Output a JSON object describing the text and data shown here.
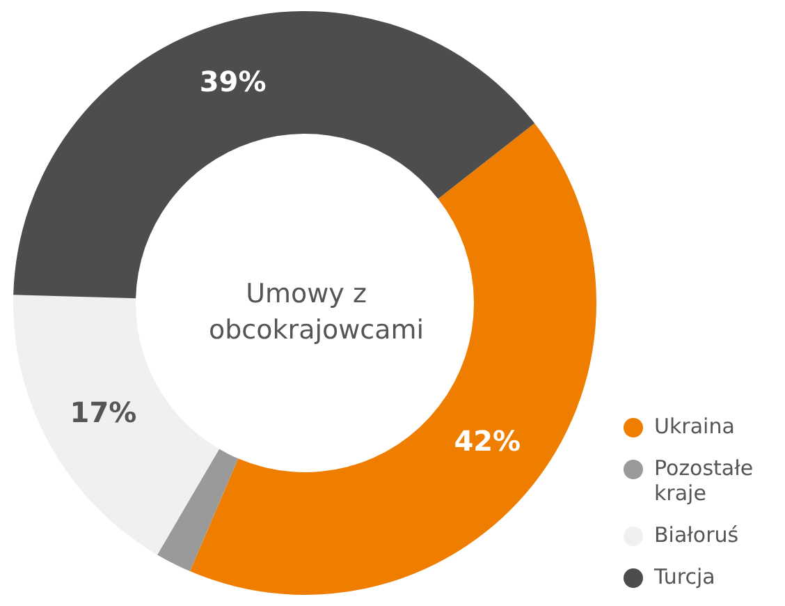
{
  "chart_data": {
    "type": "donut",
    "title": "Umowy z obcokrajowcami",
    "categories": [
      "Ukraina",
      "Pozostałe kraje",
      "Białoruś",
      "Turcja"
    ],
    "values": [
      42,
      2,
      17,
      39
    ],
    "colors": [
      "#ef7d00",
      "#9a9a9a",
      "#f0f0f0",
      "#4d4d4d"
    ],
    "value_labels": [
      "42%",
      null,
      "17%",
      "39%"
    ],
    "legend": "bottom right"
  }
}
